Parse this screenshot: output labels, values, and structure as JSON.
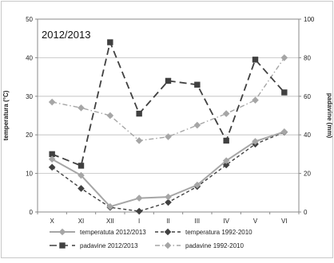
{
  "chart_data": {
    "type": "line",
    "annotation": "2012/2013",
    "categories": [
      "X",
      "XI",
      "XII",
      "I",
      "II",
      "III",
      "IV",
      "V",
      "VI"
    ],
    "y_left": {
      "label": "temperatura (°C)",
      "lim": [
        0,
        50
      ],
      "ticks": [
        0,
        10,
        20,
        30,
        40,
        50
      ]
    },
    "y_right": {
      "label": "padavine (mm)",
      "lim": [
        0,
        100
      ],
      "ticks": [
        0,
        20,
        40,
        60,
        80,
        100
      ]
    },
    "grid": "horizontal",
    "legend_position": "bottom",
    "series": [
      {
        "name": "temperatuta 2012/2013",
        "axis": "left",
        "values": [
          13.7,
          9.5,
          1.4,
          3.6,
          3.9,
          7.0,
          13.3,
          18.3,
          20.8
        ],
        "color": "#a6a6a6",
        "dash": "solid",
        "marker": "diamond"
      },
      {
        "name": "temperatura 1992-2010",
        "axis": "left",
        "values": [
          11.6,
          6.1,
          1.2,
          0.2,
          2.5,
          6.6,
          12.2,
          17.6,
          20.7
        ],
        "color": "#404040",
        "dash": "dashed",
        "marker": "diamond"
      },
      {
        "name": "padavine 2012/2013",
        "axis": "right",
        "values": [
          30,
          24,
          88,
          51,
          68,
          66,
          37,
          79,
          62
        ],
        "color": "#404040",
        "dash": "longdash",
        "marker": "square"
      },
      {
        "name": "padavine 1992-2010",
        "axis": "right",
        "values": [
          57,
          54,
          50,
          37,
          39,
          45,
          51,
          58,
          80
        ],
        "color": "#a6a6a6",
        "dash": "dashdot",
        "marker": "diamond"
      }
    ]
  }
}
